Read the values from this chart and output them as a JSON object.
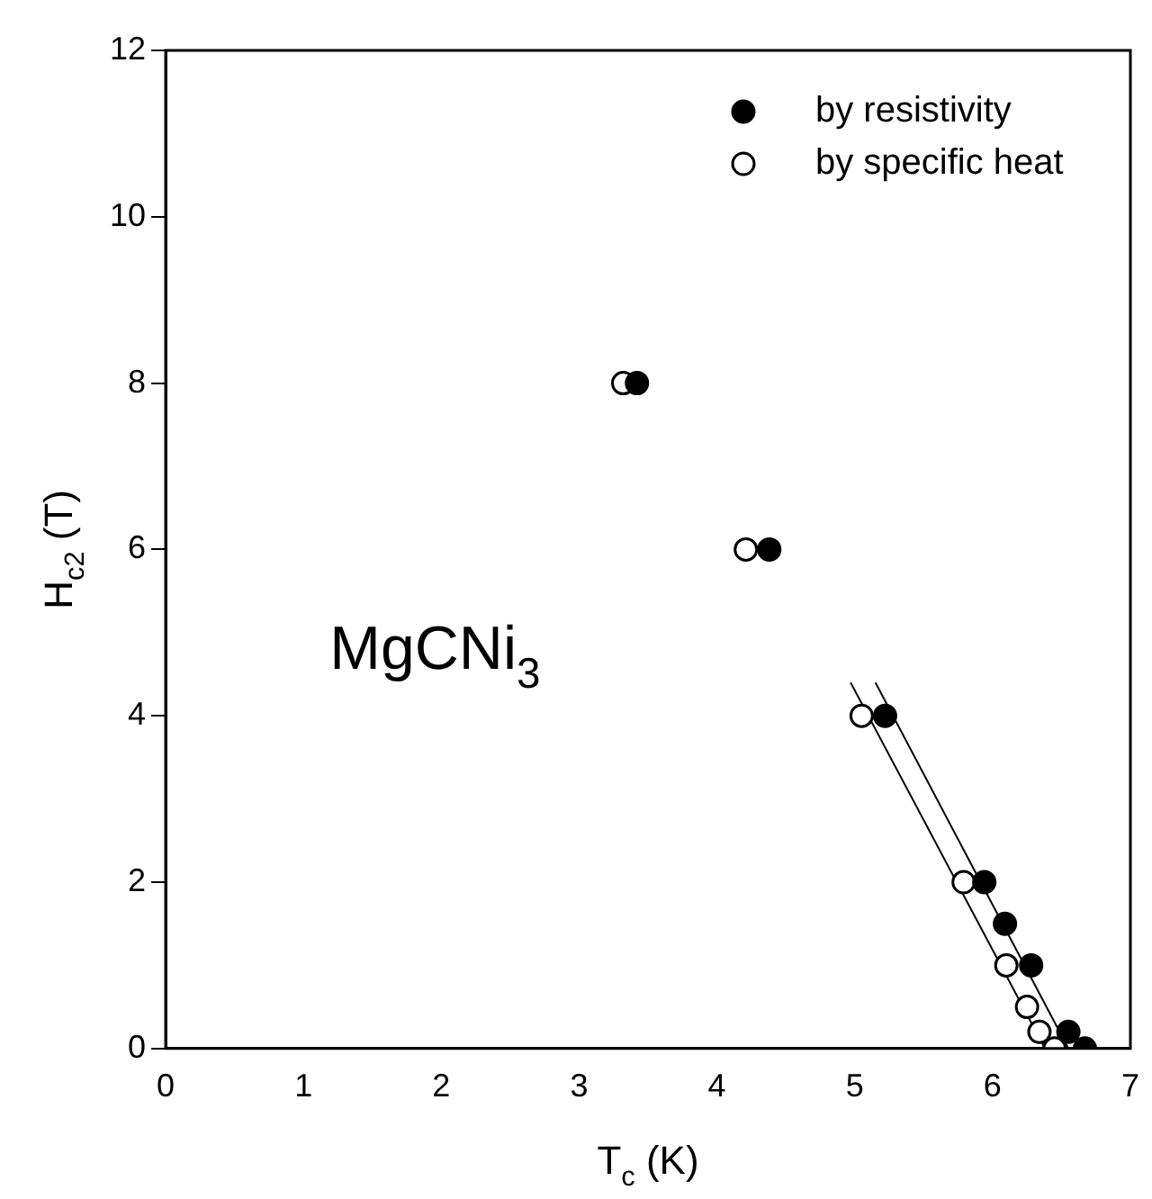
{
  "chart_data": {
    "type": "scatter",
    "xlabel": "T$_{c}$ (K)",
    "ylabel": "H$_{c2}$ (T)",
    "annotations": [
      "MgCNi$_{3}$"
    ],
    "xlim": [
      0,
      7
    ],
    "xticks": [
      0,
      1,
      2,
      3,
      4,
      5,
      6,
      7
    ],
    "ylim": [
      0,
      12
    ],
    "yticks": [
      0,
      2,
      4,
      6,
      8,
      10,
      12
    ],
    "grid": false,
    "legend": "top right",
    "series": [
      {
        "name": "by resistivity",
        "color": "#000000",
        "marker": "circle",
        "x": [
          3.42,
          4.38,
          5.22,
          5.94,
          6.09,
          6.28,
          6.55,
          6.67
        ],
        "values": [
          8,
          6,
          4,
          2,
          1.5,
          1,
          0.2,
          0
        ]
      },
      {
        "name": "by specific heat",
        "color": "#000000",
        "marker": "circle",
        "x": [
          3.32,
          4.21,
          5.05,
          5.79,
          6.1,
          6.25,
          6.34,
          6.45
        ],
        "values": [
          8,
          6,
          4,
          2,
          1,
          0.5,
          0.2,
          0
        ]
      },
      {
        "type": "line",
        "color": "#000000",
        "marker": "none",
        "x": [
          5.15,
          6.55
        ],
        "values": [
          4.4,
          0
        ]
      },
      {
        "type": "line",
        "color": "#000000",
        "marker": "none",
        "x": [
          4.97,
          6.38
        ],
        "values": [
          4.4,
          0
        ]
      }
    ]
  }
}
